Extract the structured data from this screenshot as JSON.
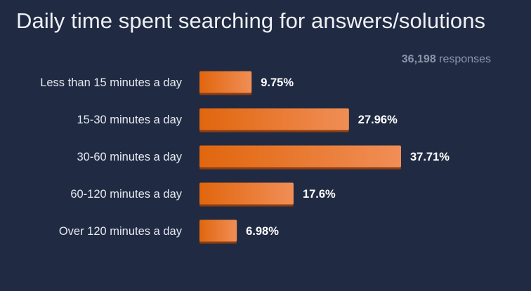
{
  "chart_data": {
    "type": "bar",
    "orientation": "horizontal",
    "title": "Daily time spent searching for answers/solutions",
    "responses": {
      "count": "36,198",
      "label": "responses"
    },
    "categories": [
      "Less than 15 minutes a day",
      "15-30 minutes a day",
      "30-60 minutes a day",
      "60-120 minutes a day",
      "Over 120 minutes a day"
    ],
    "values": [
      9.75,
      27.96,
      37.71,
      17.6,
      6.98
    ],
    "value_labels": [
      "9.75%",
      "27.96%",
      "37.71%",
      "17.6%",
      "6.98%"
    ],
    "xlim": [
      0,
      37.71
    ],
    "grid": false,
    "legend": "none"
  },
  "colors": {
    "background": "#202b43",
    "bar_dark": "#e1660e",
    "bar_light": "#f08e56",
    "bar_shadow": "#8c3d12",
    "title": "#eef0f5",
    "muted": "#8c95a8"
  }
}
